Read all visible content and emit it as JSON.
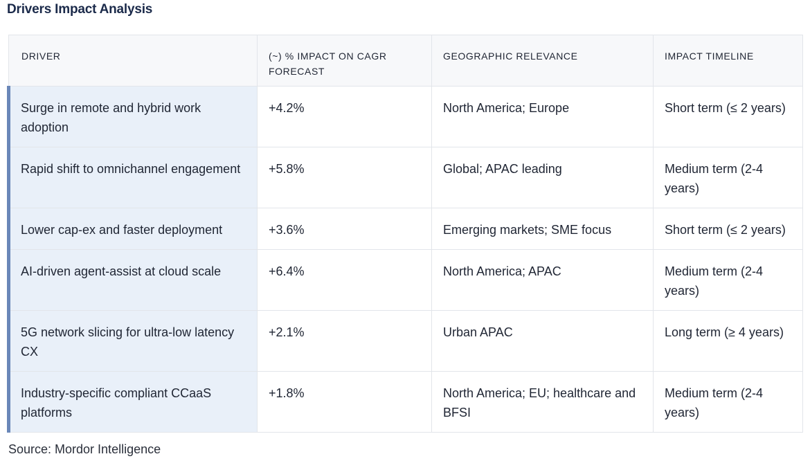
{
  "title": "Drivers Impact Analysis",
  "table": {
    "headers": {
      "driver": "DRIVER",
      "impact": "(~) % IMPACT ON CAGR FORECAST",
      "geo": "GEOGRAPHIC RELEVANCE",
      "timeline": "IMPACT TIMELINE"
    },
    "rows": [
      {
        "driver": "Surge in remote and hybrid work adoption",
        "impact": "+4.2%",
        "geo": "North America; Europe",
        "timeline": "Short term (≤ 2 years)"
      },
      {
        "driver": "Rapid shift to omnichannel engagement",
        "impact": "+5.8%",
        "geo": "Global; APAC leading",
        "timeline": "Medium term (2-4 years)"
      },
      {
        "driver": "Lower cap-ex and faster deployment",
        "impact": "+3.6%",
        "geo": "Emerging markets; SME focus",
        "timeline": "Short term (≤ 2 years)"
      },
      {
        "driver": "AI-driven agent-assist at cloud scale",
        "impact": "+6.4%",
        "geo": "North America; APAC",
        "timeline": "Medium term (2-4 years)"
      },
      {
        "driver": "5G network slicing for ultra-low latency CX",
        "impact": "+2.1%",
        "geo": "Urban APAC",
        "timeline": "Long term (≥ 4 years)"
      },
      {
        "driver": "Industry-specific compliant CCaaS platforms",
        "impact": "+1.8%",
        "geo": "North America; EU; healthcare and BFSI",
        "timeline": "Medium term (2-4 years)"
      }
    ]
  },
  "source": "Source: Mordor Intelligence"
}
